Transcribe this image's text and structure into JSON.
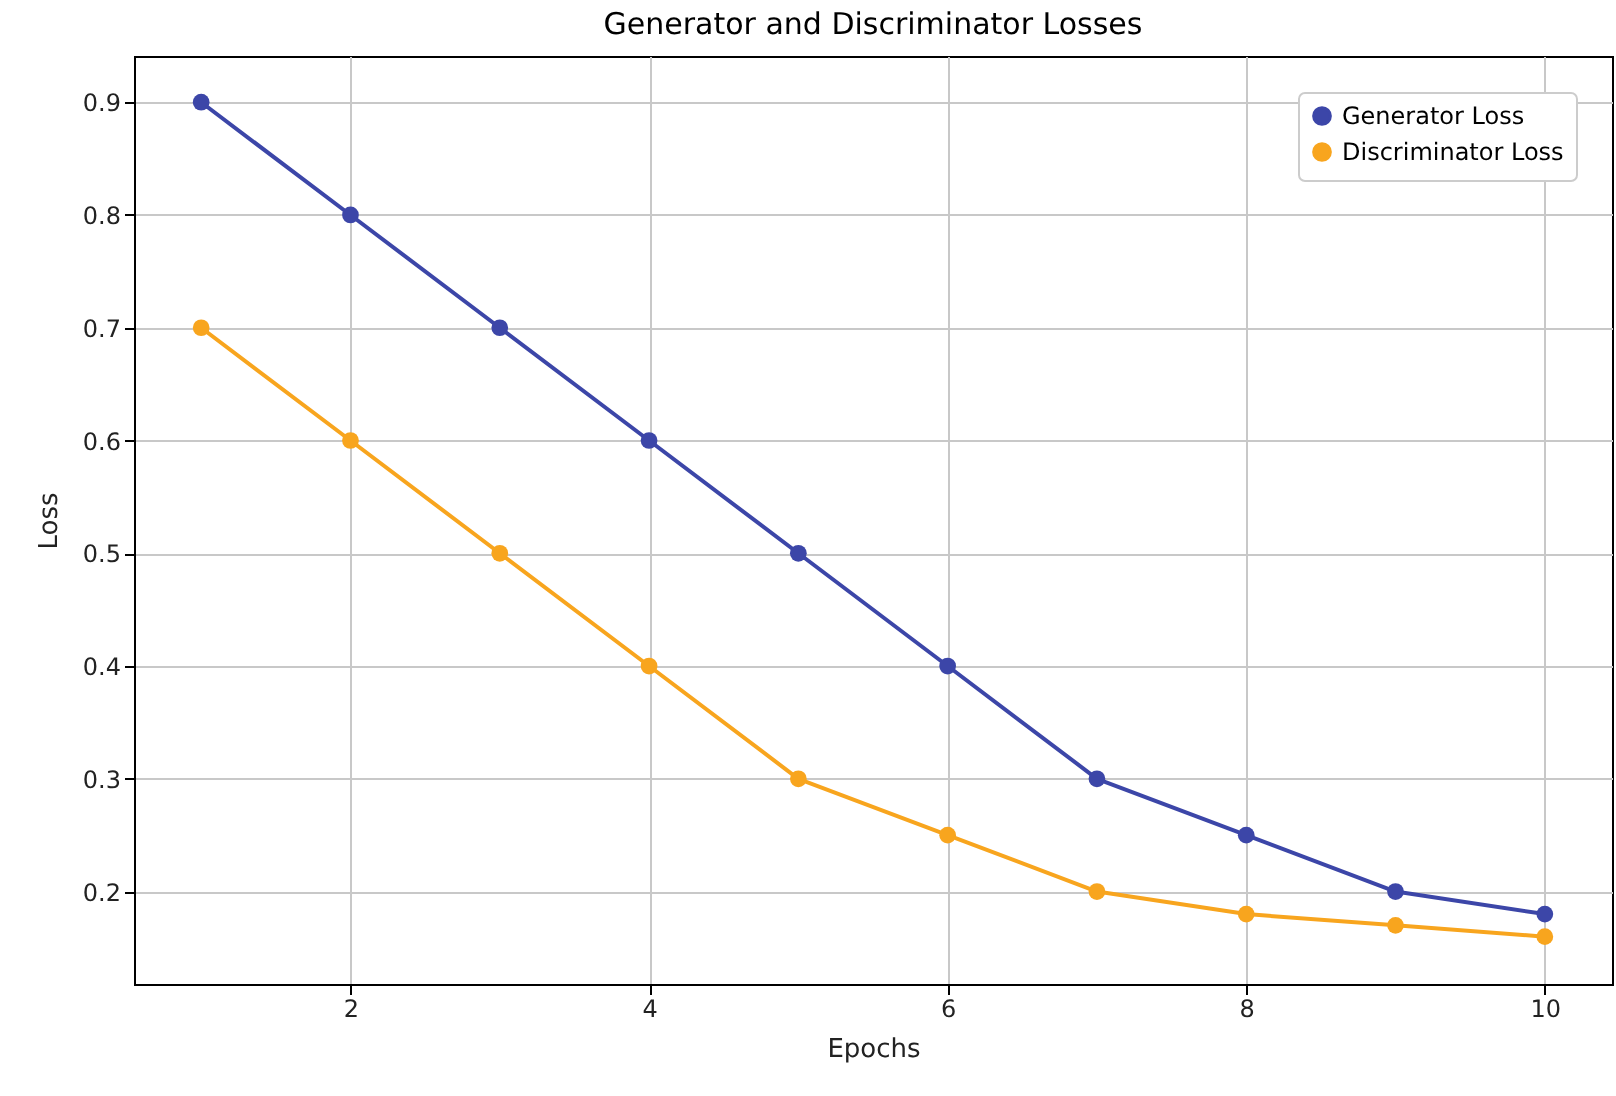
{
  "chart_data": {
    "type": "line",
    "title": "Generator and Discriminator Losses",
    "xlabel": "Epochs",
    "ylabel": "Loss",
    "x": [
      1,
      2,
      3,
      4,
      5,
      6,
      7,
      8,
      9,
      10
    ],
    "series": [
      {
        "name": "Generator Loss",
        "color": "#3c46a8",
        "values": [
          0.9,
          0.8,
          0.7,
          0.6,
          0.5,
          0.4,
          0.3,
          0.25,
          0.2,
          0.18
        ]
      },
      {
        "name": "Discriminator Loss",
        "color": "#f8a51e",
        "values": [
          0.7,
          0.6,
          0.5,
          0.4,
          0.3,
          0.25,
          0.2,
          0.18,
          0.17,
          0.16
        ]
      }
    ],
    "xlim": [
      0.55,
      10.45
    ],
    "xticks": [
      2,
      4,
      6,
      8,
      10
    ],
    "ylim": [
      0.118,
      0.941
    ],
    "yticks": [
      0.2,
      0.3,
      0.4,
      0.5,
      0.6,
      0.7,
      0.8,
      0.9
    ],
    "grid": true,
    "legend": "top right",
    "marker": "circle",
    "line_style": "solid"
  }
}
